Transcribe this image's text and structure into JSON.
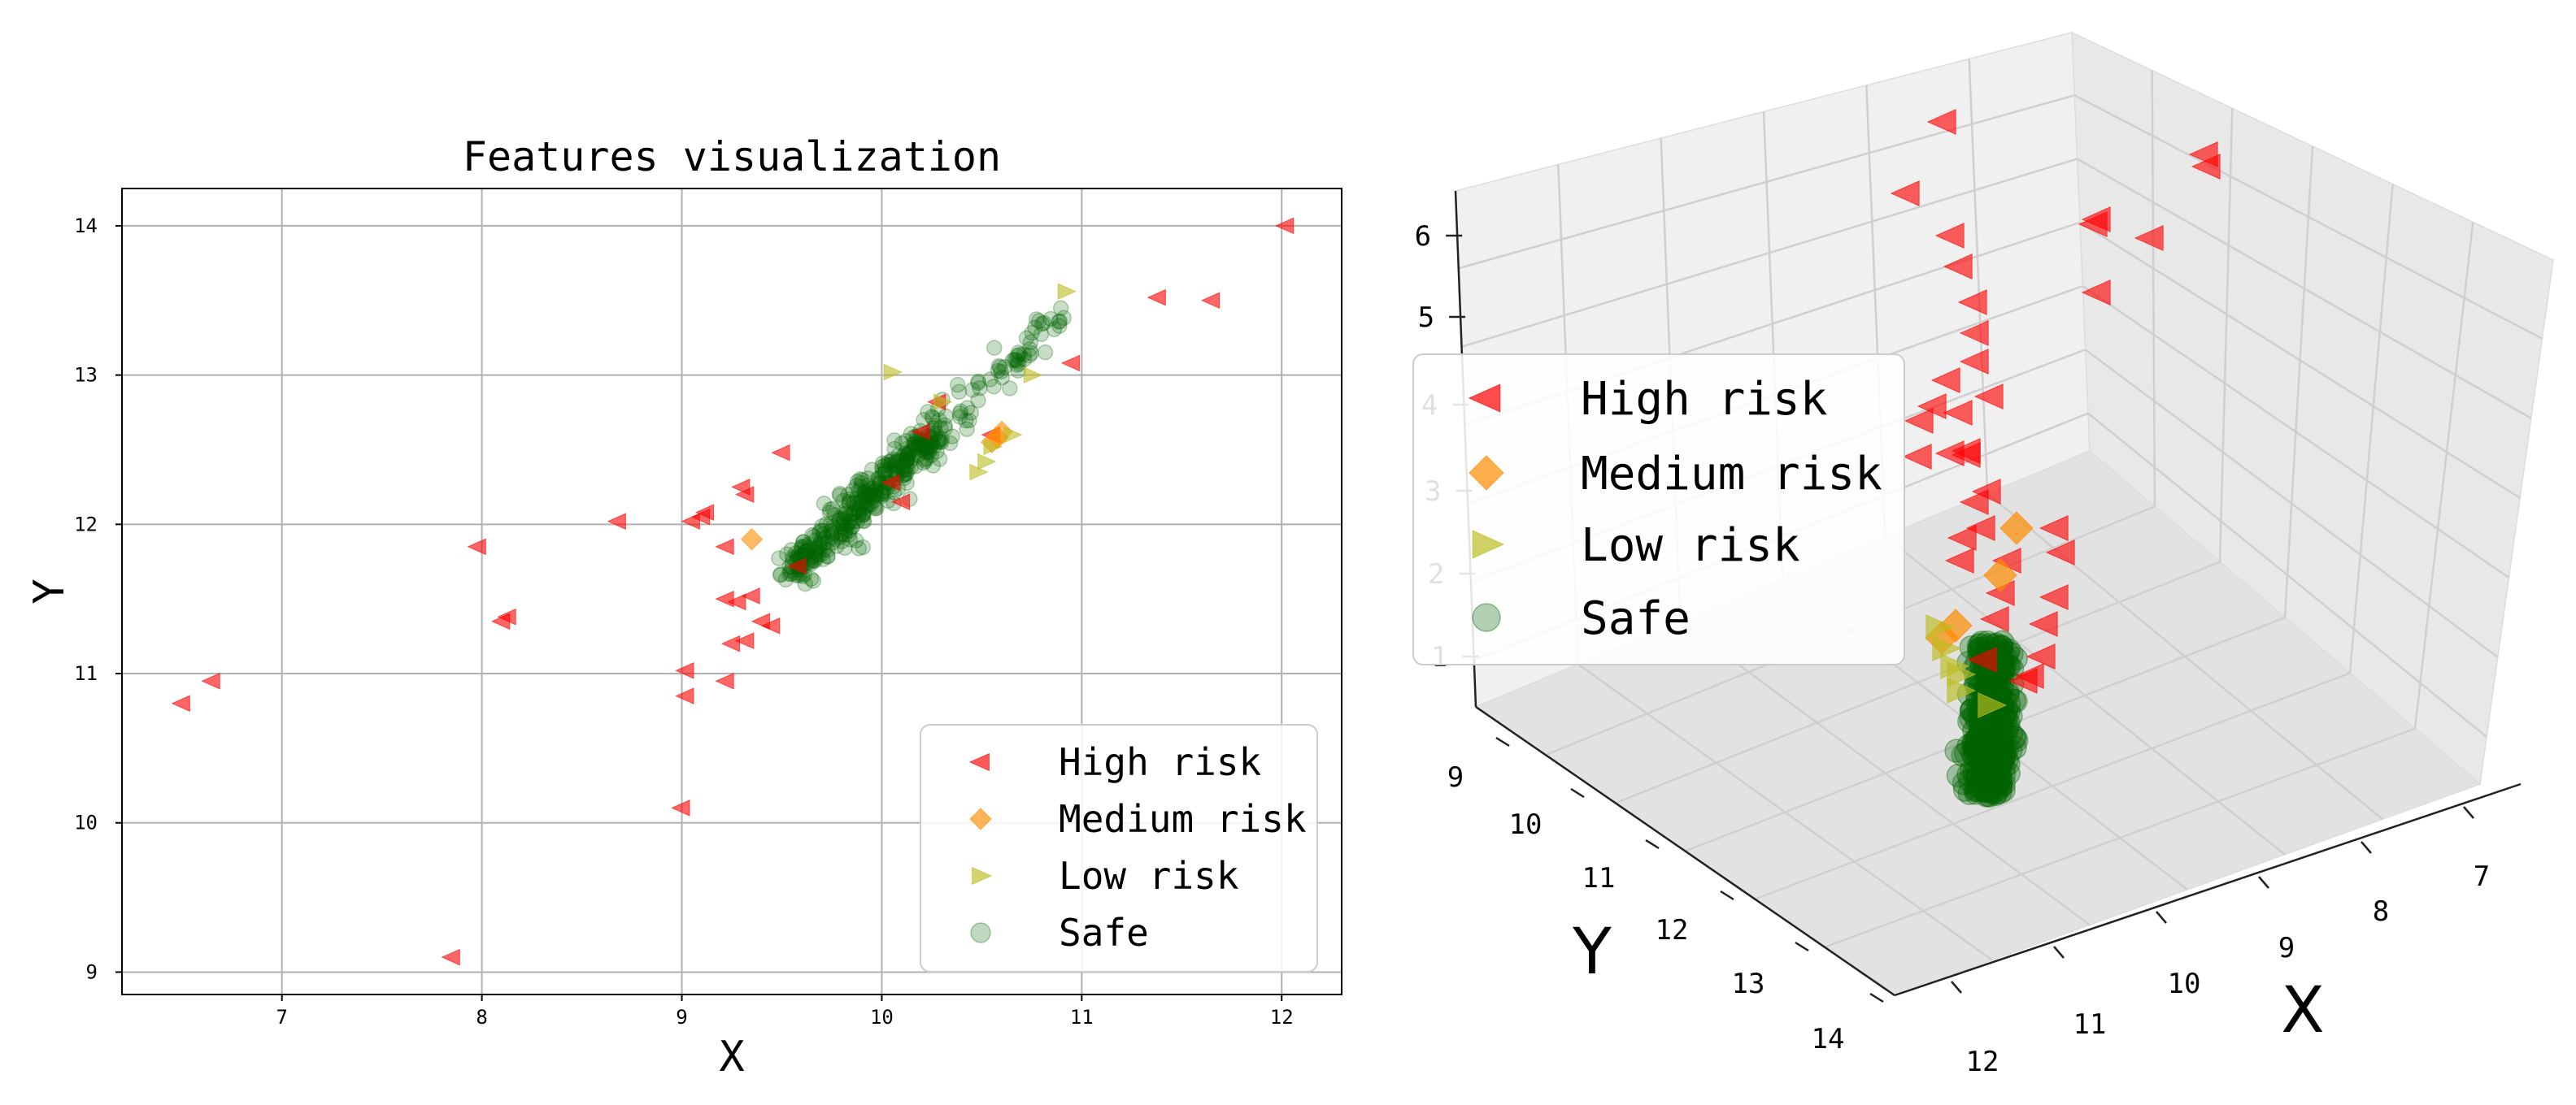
{
  "chart_data": [
    {
      "type": "scatter",
      "title": "Features visualization",
      "xlabel": "X",
      "ylabel": "Y",
      "xlim": [
        6.2,
        12.3
      ],
      "ylim": [
        8.85,
        14.25
      ],
      "xticks": [
        "7",
        "8",
        "9",
        "10",
        "11",
        "12"
      ],
      "yticks": [
        "9",
        "10",
        "11",
        "12",
        "13",
        "14"
      ],
      "grid": true,
      "legend_position": "lower-right",
      "series": [
        {
          "name": "High risk",
          "marker": "triangle-left",
          "color": "#ff0000",
          "x": [
            6.5,
            6.65,
            7.85,
            7.98,
            8.1,
            8.13,
            8.68,
            9.0,
            9.02,
            9.02,
            9.05,
            9.1,
            9.12,
            9.22,
            9.22,
            9.22,
            9.25,
            9.28,
            9.3,
            9.32,
            9.32,
            9.35,
            9.4,
            9.45,
            9.5,
            9.58,
            10.05,
            10.1,
            10.2,
            10.28,
            10.55,
            10.95,
            11.38,
            11.65,
            12.02
          ],
          "y": [
            10.8,
            10.95,
            9.1,
            11.85,
            11.35,
            11.38,
            12.02,
            10.1,
            10.85,
            11.02,
            12.02,
            12.05,
            12.08,
            10.95,
            11.5,
            11.85,
            11.2,
            11.48,
            12.25,
            11.22,
            12.2,
            11.52,
            11.35,
            11.32,
            12.48,
            11.72,
            12.28,
            12.15,
            12.62,
            12.82,
            12.6,
            13.08,
            13.52,
            13.5,
            14.0
          ]
        },
        {
          "name": "Medium risk",
          "marker": "diamond",
          "color": "#ff8c00",
          "x": [
            9.35,
            10.55,
            10.58,
            10.6
          ],
          "y": [
            11.9,
            12.55,
            12.58,
            12.62
          ]
        },
        {
          "name": "Low risk",
          "marker": "triangle-right",
          "color": "#bcbd22",
          "x": [
            10.05,
            10.3,
            10.48,
            10.52,
            10.55,
            10.65,
            10.75,
            10.92
          ],
          "y": [
            13.02,
            12.82,
            12.35,
            12.42,
            12.52,
            12.6,
            13.0,
            13.56
          ]
        },
        {
          "name": "Safe",
          "marker": "circle",
          "color": "#006400",
          "description": "dense elongated cloud along y ≈ 1.27·x − 0.44, x from 9.5 to 10.9"
        }
      ]
    },
    {
      "type": "scatter3d",
      "xlabel": "X",
      "ylabel": "Y",
      "xticks": [
        "7",
        "8",
        "9",
        "10",
        "11",
        "12"
      ],
      "yticks": [
        "9",
        "10",
        "11",
        "12",
        "13",
        "14"
      ],
      "zticks": [
        "1",
        "2",
        "3",
        "4",
        "5",
        "6"
      ],
      "legend_position": "upper-left",
      "series": [
        {
          "name": "High risk",
          "marker": "triangle-left",
          "color": "#ff0000"
        },
        {
          "name": "Medium risk",
          "marker": "diamond",
          "color": "#ff8c00"
        },
        {
          "name": "Low risk",
          "marker": "triangle-right",
          "color": "#bcbd22"
        },
        {
          "name": "Safe",
          "marker": "circle",
          "color": "#006400"
        }
      ]
    }
  ]
}
